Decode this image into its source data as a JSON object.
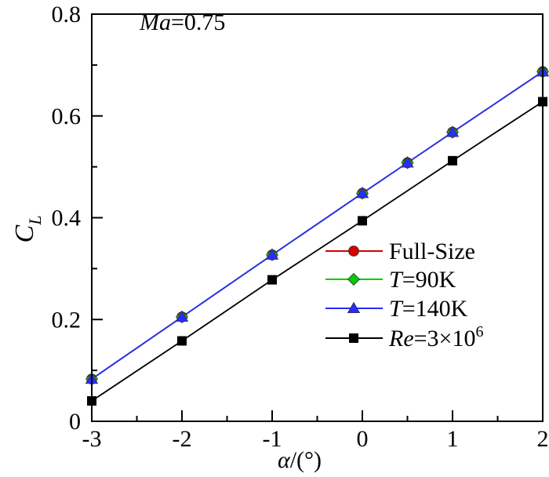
{
  "chart_data": {
    "type": "line",
    "annotation": {
      "italic": "Ma",
      "rest": "=0.75"
    },
    "xlabel": {
      "symbol": "α",
      "unit": "/(°)"
    },
    "ylabel": {
      "main": "C",
      "sub": "L"
    },
    "xlim": [
      -3,
      2
    ],
    "ylim": [
      0,
      0.8
    ],
    "xticks": [
      -3,
      -2,
      -1,
      0,
      1,
      2
    ],
    "xtick_labels": [
      "-3",
      "-2",
      "-1",
      "0",
      "1",
      "2"
    ],
    "yticks": [
      0,
      0.2,
      0.4,
      0.6,
      0.8
    ],
    "ytick_labels": [
      "0",
      "0.2",
      "0.4",
      "0.6",
      "0.8"
    ],
    "legend_position": "center-right",
    "series": [
      {
        "name": "Full-Size",
        "legend": {
          "italic": "",
          "text": "Full-Size",
          "sup": ""
        },
        "color": "#d40000",
        "marker": "circle",
        "x": [
          -3,
          -2,
          -1,
          0,
          0.5,
          1,
          2
        ],
        "y": [
          0.083,
          0.205,
          0.327,
          0.448,
          0.508,
          0.568,
          0.687
        ]
      },
      {
        "name": "T=90K",
        "legend": {
          "italic": "T",
          "text": "=90K",
          "sup": ""
        },
        "color": "#00cc00",
        "marker": "diamond",
        "x": [
          -3,
          -2,
          -1,
          0,
          0.5,
          1,
          2
        ],
        "y": [
          0.083,
          0.205,
          0.327,
          0.448,
          0.508,
          0.568,
          0.687
        ]
      },
      {
        "name": "T=140K",
        "legend": {
          "italic": "T",
          "text": "=140K",
          "sup": ""
        },
        "color": "#2b2bff",
        "marker": "triangle",
        "x": [
          -3,
          -2,
          -1,
          0,
          0.5,
          1,
          2
        ],
        "y": [
          0.083,
          0.205,
          0.327,
          0.448,
          0.508,
          0.568,
          0.687
        ]
      },
      {
        "name": "Re=3×10^6",
        "legend": {
          "italic": "Re",
          "text": "=3×10",
          "sup": "6"
        },
        "color": "#000000",
        "marker": "square",
        "x": [
          -3,
          -2,
          -1,
          0,
          1,
          2
        ],
        "y": [
          0.04,
          0.158,
          0.278,
          0.394,
          0.512,
          0.628
        ]
      }
    ]
  }
}
